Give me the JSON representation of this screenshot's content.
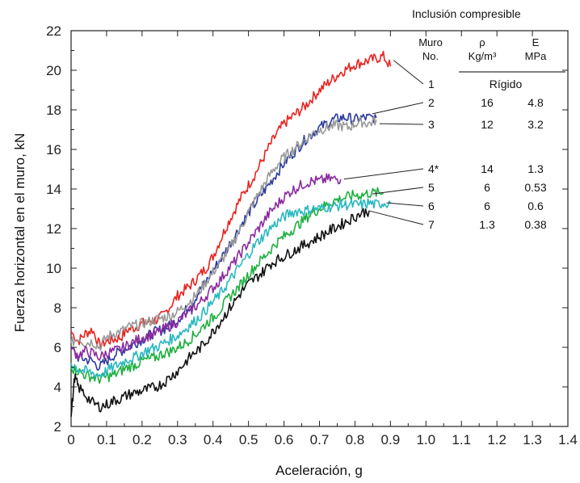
{
  "chart_data": {
    "type": "line",
    "title": "",
    "xlabel": "Aceleración, g",
    "ylabel": "Fuerza horizontal en el muro, kN",
    "xlim": [
      0,
      1.4
    ],
    "ylim": [
      2,
      22
    ],
    "x_ticks": [
      "0",
      "0.1",
      "0.2",
      "0.3",
      "0.4",
      "0.5",
      "0.6",
      "0.7",
      "0.8",
      "0.9",
      "1.0",
      "1.1",
      "1.2",
      "1.3",
      "1.4"
    ],
    "y_ticks": [
      "2",
      "4",
      "6",
      "8",
      "10",
      "12",
      "14",
      "16",
      "18",
      "20",
      "22"
    ],
    "grid": false,
    "series": [
      {
        "label": "1",
        "color": "#e8231f",
        "x": [
          0,
          0.02,
          0.04,
          0.06,
          0.08,
          0.1,
          0.12,
          0.14,
          0.16,
          0.18,
          0.2,
          0.22,
          0.24,
          0.26,
          0.28,
          0.3,
          0.32,
          0.34,
          0.36,
          0.38,
          0.4,
          0.42,
          0.44,
          0.46,
          0.48,
          0.5,
          0.52,
          0.54,
          0.56,
          0.58,
          0.6,
          0.62,
          0.64,
          0.66,
          0.68,
          0.7,
          0.72,
          0.74,
          0.76,
          0.78,
          0.8,
          0.82,
          0.84,
          0.86,
          0.88,
          0.9
        ],
        "y": [
          6.8,
          6.3,
          6.7,
          6.9,
          6.1,
          6.3,
          6.4,
          6.5,
          6.9,
          7.0,
          7.2,
          7.3,
          7.4,
          7.6,
          8.1,
          8.6,
          8.9,
          9.2,
          9.6,
          10.0,
          10.6,
          11.4,
          12.2,
          12.9,
          13.6,
          14.2,
          14.8,
          15.5,
          16.2,
          16.8,
          17.3,
          17.6,
          17.9,
          18.2,
          18.6,
          19.0,
          19.3,
          19.6,
          19.9,
          20.1,
          20.3,
          20.4,
          20.5,
          20.6,
          20.7,
          20.2
        ]
      },
      {
        "label": "2",
        "color": "#2b3a9c",
        "x": [
          0,
          0.02,
          0.04,
          0.06,
          0.08,
          0.1,
          0.12,
          0.14,
          0.16,
          0.18,
          0.2,
          0.22,
          0.24,
          0.26,
          0.28,
          0.3,
          0.32,
          0.34,
          0.36,
          0.38,
          0.4,
          0.42,
          0.44,
          0.46,
          0.48,
          0.5,
          0.52,
          0.54,
          0.56,
          0.58,
          0.6,
          0.62,
          0.64,
          0.66,
          0.68,
          0.7,
          0.72,
          0.74,
          0.76,
          0.78,
          0.8,
          0.82,
          0.84,
          0.86
        ],
        "y": [
          6.0,
          5.5,
          5.4,
          5.3,
          5.0,
          5.3,
          5.6,
          5.8,
          6.0,
          6.2,
          6.4,
          6.6,
          6.8,
          6.9,
          7.1,
          7.4,
          7.8,
          8.2,
          8.8,
          9.3,
          9.9,
          10.4,
          11.0,
          11.6,
          12.2,
          12.8,
          13.3,
          13.8,
          14.3,
          14.8,
          15.3,
          15.7,
          16.1,
          16.5,
          16.8,
          17.1,
          17.3,
          17.5,
          17.6,
          17.6,
          17.5,
          17.6,
          17.6,
          17.6
        ]
      },
      {
        "label": "3",
        "color": "#999999",
        "x": [
          0,
          0.02,
          0.04,
          0.06,
          0.08,
          0.1,
          0.12,
          0.14,
          0.16,
          0.18,
          0.2,
          0.22,
          0.24,
          0.26,
          0.28,
          0.3,
          0.32,
          0.34,
          0.36,
          0.38,
          0.4,
          0.42,
          0.44,
          0.46,
          0.48,
          0.5,
          0.52,
          0.54,
          0.56,
          0.58,
          0.6,
          0.62,
          0.64,
          0.66,
          0.68,
          0.7,
          0.72,
          0.74,
          0.76,
          0.78,
          0.8,
          0.82,
          0.84,
          0.86
        ],
        "y": [
          6.2,
          6.5,
          6.2,
          6.3,
          6.0,
          6.5,
          6.7,
          6.8,
          7.0,
          7.1,
          7.2,
          7.3,
          7.4,
          7.5,
          7.6,
          7.8,
          8.1,
          8.4,
          8.8,
          9.3,
          9.8,
          10.3,
          10.8,
          11.4,
          12.1,
          12.8,
          13.5,
          14.1,
          14.7,
          15.2,
          15.6,
          15.9,
          16.2,
          16.5,
          16.8,
          17.0,
          17.1,
          17.2,
          17.2,
          17.1,
          17.3,
          17.4,
          17.3,
          17.5
        ]
      },
      {
        "label": "4*",
        "color": "#8b2aa0",
        "x": [
          0,
          0.02,
          0.04,
          0.06,
          0.08,
          0.1,
          0.12,
          0.14,
          0.16,
          0.18,
          0.2,
          0.22,
          0.24,
          0.26,
          0.28,
          0.3,
          0.32,
          0.34,
          0.36,
          0.38,
          0.4,
          0.42,
          0.44,
          0.46,
          0.48,
          0.5,
          0.52,
          0.54,
          0.56,
          0.58,
          0.6,
          0.62,
          0.64,
          0.66,
          0.68,
          0.7,
          0.72,
          0.74,
          0.76
        ],
        "y": [
          5.9,
          5.6,
          5.8,
          5.7,
          5.5,
          5.7,
          5.8,
          5.9,
          6.1,
          6.3,
          6.5,
          6.6,
          6.7,
          6.9,
          7.1,
          7.3,
          7.6,
          7.9,
          8.2,
          8.6,
          9.0,
          9.4,
          9.9,
          10.3,
          10.8,
          11.3,
          11.8,
          12.3,
          12.8,
          13.2,
          13.6,
          13.9,
          14.1,
          14.3,
          14.4,
          14.4,
          14.5,
          14.5,
          14.5
        ]
      },
      {
        "label": "5",
        "color": "#1fb040",
        "x": [
          0,
          0.02,
          0.04,
          0.06,
          0.08,
          0.1,
          0.12,
          0.14,
          0.16,
          0.18,
          0.2,
          0.22,
          0.24,
          0.26,
          0.28,
          0.3,
          0.32,
          0.34,
          0.36,
          0.38,
          0.4,
          0.42,
          0.44,
          0.46,
          0.48,
          0.5,
          0.52,
          0.54,
          0.56,
          0.58,
          0.6,
          0.62,
          0.64,
          0.66,
          0.68,
          0.7,
          0.72,
          0.74,
          0.76,
          0.78,
          0.8,
          0.82,
          0.84,
          0.86,
          0.88
        ],
        "y": [
          5.0,
          4.8,
          4.6,
          4.5,
          4.4,
          4.5,
          4.6,
          4.8,
          5.0,
          5.1,
          5.3,
          5.4,
          5.5,
          5.7,
          5.8,
          6.0,
          6.2,
          6.5,
          6.8,
          7.2,
          7.5,
          7.9,
          8.4,
          8.8,
          9.2,
          9.7,
          10.1,
          10.5,
          10.9,
          11.3,
          11.6,
          11.9,
          12.2,
          12.5,
          12.8,
          13.0,
          13.2,
          13.4,
          13.5,
          13.6,
          13.7,
          13.7,
          13.8,
          13.8,
          13.8
        ]
      },
      {
        "label": "6",
        "color": "#28b8c0",
        "x": [
          0,
          0.02,
          0.04,
          0.06,
          0.08,
          0.1,
          0.12,
          0.14,
          0.16,
          0.18,
          0.2,
          0.22,
          0.24,
          0.26,
          0.28,
          0.3,
          0.32,
          0.34,
          0.36,
          0.38,
          0.4,
          0.42,
          0.44,
          0.46,
          0.48,
          0.5,
          0.52,
          0.54,
          0.56,
          0.58,
          0.6,
          0.62,
          0.64,
          0.66,
          0.68,
          0.7,
          0.72,
          0.74,
          0.76,
          0.78,
          0.8,
          0.82,
          0.84,
          0.86,
          0.88,
          0.9
        ],
        "y": [
          5.2,
          4.9,
          4.8,
          4.7,
          4.6,
          4.8,
          5.0,
          5.2,
          5.4,
          5.5,
          5.7,
          5.9,
          6.0,
          6.2,
          6.4,
          6.6,
          6.9,
          7.2,
          7.5,
          7.9,
          8.3,
          8.7,
          9.2,
          9.7,
          10.2,
          10.7,
          11.2,
          11.6,
          12.0,
          12.3,
          12.6,
          12.8,
          12.9,
          12.9,
          13.0,
          13.0,
          13.1,
          13.1,
          13.2,
          13.2,
          13.2,
          13.2,
          13.3,
          13.2,
          13.3,
          13.3
        ]
      },
      {
        "label": "7",
        "color": "#111111",
        "x": [
          0,
          0.01,
          0.02,
          0.04,
          0.06,
          0.08,
          0.1,
          0.12,
          0.14,
          0.16,
          0.18,
          0.2,
          0.22,
          0.24,
          0.26,
          0.28,
          0.3,
          0.32,
          0.34,
          0.36,
          0.38,
          0.4,
          0.42,
          0.44,
          0.46,
          0.48,
          0.5,
          0.52,
          0.54,
          0.56,
          0.58,
          0.6,
          0.62,
          0.64,
          0.66,
          0.68,
          0.7,
          0.72,
          0.74,
          0.76,
          0.78,
          0.8,
          0.82,
          0.84
        ],
        "y": [
          2.5,
          4.5,
          4.0,
          3.6,
          3.2,
          3.0,
          3.1,
          3.3,
          3.4,
          3.6,
          3.7,
          3.8,
          3.9,
          4.0,
          4.2,
          4.5,
          4.8,
          5.2,
          5.6,
          5.9,
          6.3,
          6.8,
          7.3,
          7.8,
          8.3,
          8.8,
          9.2,
          9.5,
          9.8,
          10.2,
          10.4,
          10.6,
          10.8,
          11.0,
          11.2,
          11.4,
          11.6,
          11.8,
          12.0,
          12.2,
          12.4,
          12.6,
          12.8,
          12.9
        ]
      }
    ],
    "legend_table": {
      "title": "Inclusión compresible",
      "columns": [
        {
          "lines": [
            "Muro",
            "No."
          ]
        },
        {
          "lines": [
            "ρ",
            "Kg/m³"
          ]
        },
        {
          "lines": [
            "E",
            "MPa"
          ]
        }
      ],
      "rows": [
        {
          "no": "1",
          "rho": "Rígido",
          "e": ""
        },
        {
          "no": "2",
          "rho": "16",
          "e": "4.8"
        },
        {
          "no": "3",
          "rho": "12",
          "e": "3.2"
        },
        {
          "no": "4*",
          "rho": "14",
          "e": "1.3"
        },
        {
          "no": "5",
          "rho": "6",
          "e": "0.53"
        },
        {
          "no": "6",
          "rho": "6",
          "e": "0.6"
        },
        {
          "no": "7",
          "rho": "1.3",
          "e": "0.38"
        }
      ]
    }
  }
}
